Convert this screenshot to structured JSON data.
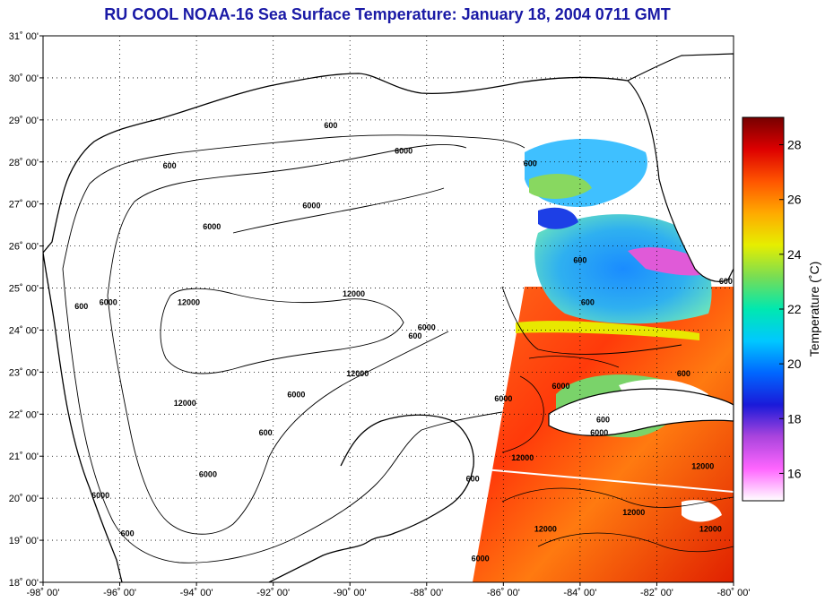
{
  "title": "RU COOL  NOAA-16  Sea Surface Temperature:  January 18, 2004 0711 GMT",
  "map": {
    "lon_range": [
      -98,
      -80
    ],
    "lat_range": [
      18,
      31
    ],
    "lon_ticks": [
      "-98˚ 00'",
      "-96˚ 00'",
      "-94˚ 00'",
      "-92˚ 00'",
      "-90˚ 00'",
      "-88˚ 00'",
      "-86˚ 00'",
      "-84˚ 00'",
      "-82˚ 00'",
      "-80˚ 00'"
    ],
    "lat_ticks": [
      "18˚ 00'",
      "19˚ 00'",
      "20˚ 00'",
      "21˚ 00'",
      "22˚ 00'",
      "23˚ 00'",
      "24˚ 00'",
      "25˚ 00'",
      "26˚ 00'",
      "27˚ 00'",
      "28˚ 00'",
      "29˚ 00'",
      "30˚ 00'",
      "31˚ 00'"
    ],
    "grid": "dotted",
    "contour_labels": [
      {
        "text": "600",
        "lon": -94.7,
        "lat": 27.85
      },
      {
        "text": "600",
        "lon": -90.5,
        "lat": 28.8
      },
      {
        "text": "6000",
        "lon": -88.6,
        "lat": 28.2
      },
      {
        "text": "6000",
        "lon": -93.6,
        "lat": 26.4
      },
      {
        "text": "6000",
        "lon": -91.0,
        "lat": 26.9
      },
      {
        "text": "6000",
        "lon": -96.3,
        "lat": 24.6
      },
      {
        "text": "600",
        "lon": -97.0,
        "lat": 24.5
      },
      {
        "text": "12000",
        "lon": -94.2,
        "lat": 24.6
      },
      {
        "text": "12000",
        "lon": -89.9,
        "lat": 24.8
      },
      {
        "text": "6000",
        "lon": -88.0,
        "lat": 24.0
      },
      {
        "text": "600",
        "lon": -88.3,
        "lat": 23.8
      },
      {
        "text": "12000",
        "lon": -89.8,
        "lat": 22.9
      },
      {
        "text": "6000",
        "lon": -91.4,
        "lat": 22.4
      },
      {
        "text": "12000",
        "lon": -94.3,
        "lat": 22.2
      },
      {
        "text": "600",
        "lon": -92.2,
        "lat": 21.5
      },
      {
        "text": "6000",
        "lon": -93.7,
        "lat": 20.5
      },
      {
        "text": "6000",
        "lon": -96.5,
        "lat": 20.0
      },
      {
        "text": "600",
        "lon": -95.8,
        "lat": 19.1
      },
      {
        "text": "600",
        "lon": -86.8,
        "lat": 20.4
      },
      {
        "text": "6000",
        "lon": -86.6,
        "lat": 18.5
      },
      {
        "text": "600",
        "lon": -85.3,
        "lat": 27.9
      },
      {
        "text": "600",
        "lon": -84.0,
        "lat": 25.6
      },
      {
        "text": "600",
        "lon": -83.8,
        "lat": 24.6
      },
      {
        "text": "6000",
        "lon": -84.5,
        "lat": 22.6
      },
      {
        "text": "6000",
        "lon": -86.0,
        "lat": 22.3
      },
      {
        "text": "600",
        "lon": -83.4,
        "lat": 21.8
      },
      {
        "text": "6000",
        "lon": -83.5,
        "lat": 21.5
      },
      {
        "text": "12000",
        "lon": -85.5,
        "lat": 20.9
      },
      {
        "text": "12000",
        "lon": -84.9,
        "lat": 19.2
      },
      {
        "text": "12000",
        "lon": -82.6,
        "lat": 19.6
      },
      {
        "text": "12000",
        "lon": -80.8,
        "lat": 20.7
      },
      {
        "text": "12000",
        "lon": -80.6,
        "lat": 19.2
      },
      {
        "text": "600",
        "lon": -81.3,
        "lat": 22.9
      },
      {
        "text": "600",
        "lon": -80.2,
        "lat": 25.1
      }
    ]
  },
  "colorbar": {
    "title": "Temperature (˚C)",
    "min": 15,
    "max": 29,
    "ticks": [
      "16",
      "18",
      "20",
      "22",
      "24",
      "26",
      "28"
    ],
    "tick_values": [
      16,
      18,
      20,
      22,
      24,
      26,
      28
    ],
    "stops": [
      "#ffffff",
      "#ff66ff",
      "#aa44dd",
      "#1a1ad9",
      "#0066ff",
      "#00c8ff",
      "#00e8b0",
      "#77dd55",
      "#e6ee00",
      "#ffaa00",
      "#ff5500",
      "#dd0000",
      "#770000"
    ]
  },
  "colors": {
    "title": "#1a1aa6",
    "land": "#ffffff",
    "ocean_nodata": "#ffffff",
    "warm_water": "#ff5a1a",
    "cool_water": "#2aa0ff",
    "cloud": "#ffffff"
  }
}
